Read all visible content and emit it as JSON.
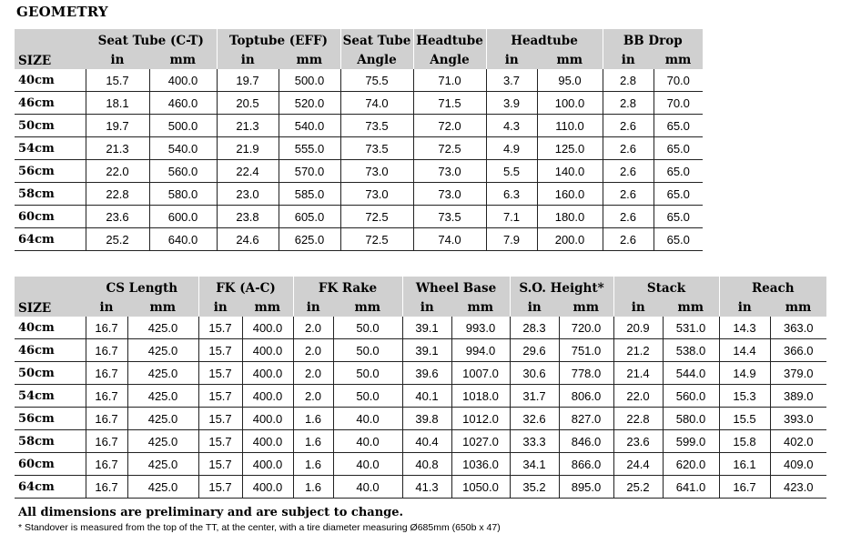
{
  "title": "GEOMETRY",
  "size_label": "SIZE",
  "unit_in": "in",
  "unit_mm": "mm",
  "table1": {
    "headers": [
      {
        "top": "Seat Tube (C-T)",
        "type": "pair"
      },
      {
        "top": "Toptube (EFF)",
        "type": "pair"
      },
      {
        "top": "Seat Tube",
        "bottom": "Angle",
        "type": "single"
      },
      {
        "top": "Headtube",
        "bottom": "Angle",
        "type": "single"
      },
      {
        "top": "Headtube",
        "type": "pair"
      },
      {
        "top": "BB Drop",
        "type": "pair"
      }
    ],
    "rows": [
      {
        "size": "40cm",
        "cells": [
          "15.7",
          "400.0",
          "19.7",
          "500.0",
          "75.5",
          "71.0",
          "3.7",
          "95.0",
          "2.8",
          "70.0"
        ]
      },
      {
        "size": "46cm",
        "cells": [
          "18.1",
          "460.0",
          "20.5",
          "520.0",
          "74.0",
          "71.5",
          "3.9",
          "100.0",
          "2.8",
          "70.0"
        ]
      },
      {
        "size": "50cm",
        "cells": [
          "19.7",
          "500.0",
          "21.3",
          "540.0",
          "73.5",
          "72.0",
          "4.3",
          "110.0",
          "2.6",
          "65.0"
        ]
      },
      {
        "size": "54cm",
        "cells": [
          "21.3",
          "540.0",
          "21.9",
          "555.0",
          "73.5",
          "72.5",
          "4.9",
          "125.0",
          "2.6",
          "65.0"
        ]
      },
      {
        "size": "56cm",
        "cells": [
          "22.0",
          "560.0",
          "22.4",
          "570.0",
          "73.0",
          "73.0",
          "5.5",
          "140.0",
          "2.6",
          "65.0"
        ]
      },
      {
        "size": "58cm",
        "cells": [
          "22.8",
          "580.0",
          "23.0",
          "585.0",
          "73.0",
          "73.0",
          "6.3",
          "160.0",
          "2.6",
          "65.0"
        ]
      },
      {
        "size": "60cm",
        "cells": [
          "23.6",
          "600.0",
          "23.8",
          "605.0",
          "72.5",
          "73.5",
          "7.1",
          "180.0",
          "2.6",
          "65.0"
        ]
      },
      {
        "size": "64cm",
        "cells": [
          "25.2",
          "640.0",
          "24.6",
          "625.0",
          "72.5",
          "74.0",
          "7.9",
          "200.0",
          "2.6",
          "65.0"
        ]
      }
    ]
  },
  "table2": {
    "headers": [
      {
        "top": "CS Length",
        "type": "pair"
      },
      {
        "top": "FK (A-C)",
        "type": "pair"
      },
      {
        "top": "FK Rake",
        "type": "pair"
      },
      {
        "top": "Wheel Base",
        "type": "pair"
      },
      {
        "top": "S.O. Height*",
        "type": "pair"
      },
      {
        "top": "Stack",
        "type": "pair"
      },
      {
        "top": "Reach",
        "type": "pair"
      }
    ],
    "rows": [
      {
        "size": "40cm",
        "cells": [
          "16.7",
          "425.0",
          "15.7",
          "400.0",
          "2.0",
          "50.0",
          "39.1",
          "993.0",
          "28.3",
          "720.0",
          "20.9",
          "531.0",
          "14.3",
          "363.0"
        ]
      },
      {
        "size": "46cm",
        "cells": [
          "16.7",
          "425.0",
          "15.7",
          "400.0",
          "2.0",
          "50.0",
          "39.1",
          "994.0",
          "29.6",
          "751.0",
          "21.2",
          "538.0",
          "14.4",
          "366.0"
        ]
      },
      {
        "size": "50cm",
        "cells": [
          "16.7",
          "425.0",
          "15.7",
          "400.0",
          "2.0",
          "50.0",
          "39.6",
          "1007.0",
          "30.6",
          "778.0",
          "21.4",
          "544.0",
          "14.9",
          "379.0"
        ]
      },
      {
        "size": "54cm",
        "cells": [
          "16.7",
          "425.0",
          "15.7",
          "400.0",
          "2.0",
          "50.0",
          "40.1",
          "1018.0",
          "31.7",
          "806.0",
          "22.0",
          "560.0",
          "15.3",
          "389.0"
        ]
      },
      {
        "size": "56cm",
        "cells": [
          "16.7",
          "425.0",
          "15.7",
          "400.0",
          "1.6",
          "40.0",
          "39.8",
          "1012.0",
          "32.6",
          "827.0",
          "22.8",
          "580.0",
          "15.5",
          "393.0"
        ]
      },
      {
        "size": "58cm",
        "cells": [
          "16.7",
          "425.0",
          "15.7",
          "400.0",
          "1.6",
          "40.0",
          "40.4",
          "1027.0",
          "33.3",
          "846.0",
          "23.6",
          "599.0",
          "15.8",
          "402.0"
        ]
      },
      {
        "size": "60cm",
        "cells": [
          "16.7",
          "425.0",
          "15.7",
          "400.0",
          "1.6",
          "40.0",
          "40.8",
          "1036.0",
          "34.1",
          "866.0",
          "24.4",
          "620.0",
          "16.1",
          "409.0"
        ]
      },
      {
        "size": "64cm",
        "cells": [
          "16.7",
          "425.0",
          "15.7",
          "400.0",
          "1.6",
          "40.0",
          "41.3",
          "1050.0",
          "35.2",
          "895.0",
          "25.2",
          "641.0",
          "16.7",
          "423.0"
        ]
      }
    ]
  },
  "notes": {
    "preliminary": "All dimensions are preliminary and are subject to change.",
    "standover": "* Standover is measured from the top of the TT, at the center, with a tire diameter measuring Ø685mm (650b x 47)"
  },
  "colors": {
    "header_bg": "#d0d0d0",
    "rule": "#222222"
  }
}
